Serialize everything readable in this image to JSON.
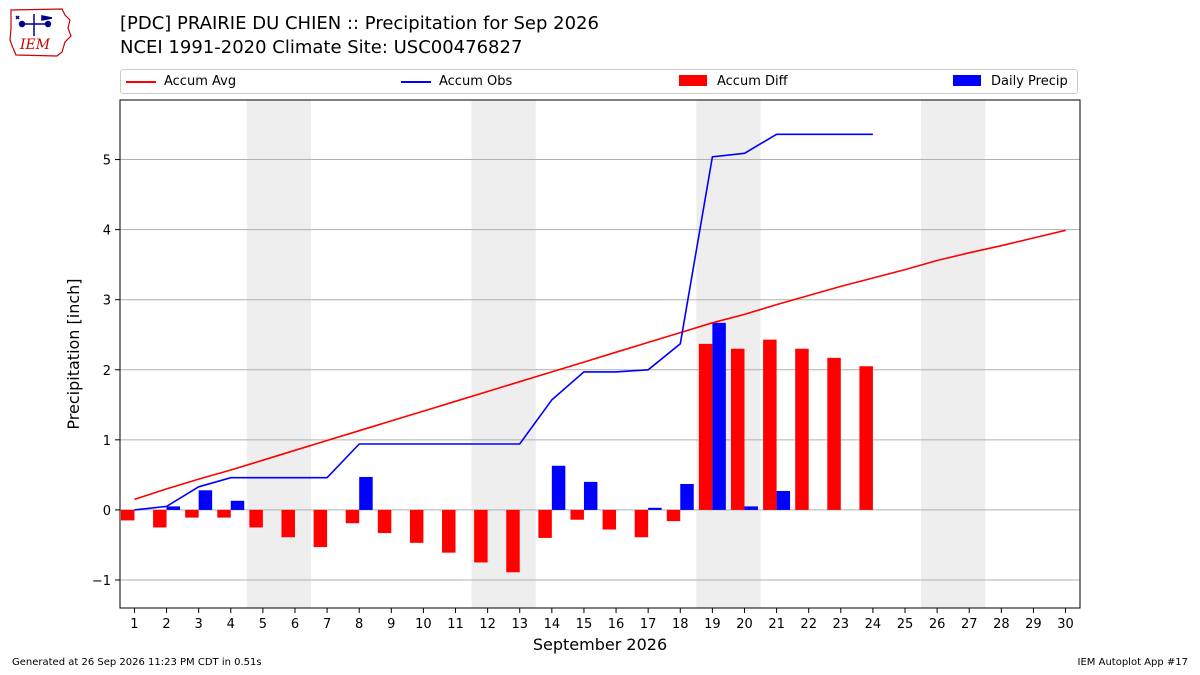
{
  "header": {
    "title_line1": "[PDC] PRAIRIE DU CHIEN :: Precipitation for Sep 2026",
    "title_line2": "NCEI 1991-2020 Climate Site: USC00476827",
    "logo_text": "IEM"
  },
  "footer": {
    "left": "Generated at 26 Sep 2026 11:23 PM CDT in 0.51s",
    "right": "IEM Autoplot App #17"
  },
  "colors": {
    "accum_avg": "#ff0000",
    "accum_obs": "#0000ff",
    "accum_diff": "#ff0000",
    "daily_precip": "#0000ff",
    "weekend_shade": "#eeeeee",
    "grid": "#b0b0b0"
  },
  "chart_data": {
    "type": "bar",
    "xlabel": "September 2026",
    "ylabel": "Precipitation [inch]",
    "ylim": [
      -1.4,
      5.85
    ],
    "yticks": [
      -1,
      0,
      1,
      2,
      3,
      4,
      5
    ],
    "ytick_labels": [
      "−1",
      "0",
      "1",
      "2",
      "3",
      "4",
      "5"
    ],
    "grid": "horizontal",
    "legend_position": "top",
    "weekend_shading": [
      [
        5,
        6
      ],
      [
        12,
        13
      ],
      [
        19,
        20
      ],
      [
        26,
        27
      ]
    ],
    "x": [
      1,
      2,
      3,
      4,
      5,
      6,
      7,
      8,
      9,
      10,
      11,
      12,
      13,
      14,
      15,
      16,
      17,
      18,
      19,
      20,
      21,
      22,
      23,
      24,
      25,
      26,
      27,
      28,
      29,
      30
    ],
    "x_tick_labels": [
      "1",
      "2",
      "3",
      "4",
      "5",
      "6",
      "7",
      "8",
      "9",
      "10",
      "11",
      "12",
      "13",
      "14",
      "15",
      "16",
      "17",
      "18",
      "19",
      "20",
      "21",
      "22",
      "23",
      "24",
      "25",
      "26",
      "27",
      "28",
      "29",
      "30"
    ],
    "series": [
      {
        "name": "Accum Avg",
        "type": "line",
        "color": "#ff0000",
        "x": [
          1,
          2,
          3,
          4,
          5,
          6,
          7,
          8,
          9,
          10,
          11,
          12,
          13,
          14,
          15,
          16,
          17,
          18,
          19,
          20,
          21,
          22,
          23,
          24,
          25,
          26,
          27,
          28,
          29,
          30
        ],
        "values": [
          0.15,
          0.3,
          0.44,
          0.57,
          0.71,
          0.85,
          0.99,
          1.13,
          1.27,
          1.41,
          1.55,
          1.69,
          1.83,
          1.97,
          2.11,
          2.25,
          2.39,
          2.53,
          2.67,
          2.79,
          2.93,
          3.06,
          3.19,
          3.31,
          3.43,
          3.56,
          3.67,
          3.77,
          3.88,
          3.99
        ]
      },
      {
        "name": "Accum Obs",
        "type": "line",
        "color": "#0000ff",
        "x": [
          1,
          2,
          3,
          4,
          5,
          6,
          7,
          8,
          9,
          10,
          11,
          12,
          13,
          14,
          15,
          16,
          17,
          18,
          19,
          20,
          21,
          22,
          23,
          24
        ],
        "values": [
          0.0,
          0.05,
          0.33,
          0.46,
          0.46,
          0.46,
          0.46,
          0.94,
          0.94,
          0.94,
          0.94,
          0.94,
          0.94,
          1.57,
          1.97,
          1.97,
          2.0,
          2.37,
          5.04,
          5.09,
          5.36,
          5.36,
          5.36,
          5.36
        ]
      },
      {
        "name": "Accum Diff",
        "type": "bar",
        "color": "#ff0000",
        "x": [
          1,
          2,
          3,
          4,
          5,
          6,
          7,
          8,
          9,
          10,
          11,
          12,
          13,
          14,
          15,
          16,
          17,
          18,
          19,
          20,
          21,
          22,
          23,
          24
        ],
        "values": [
          -0.15,
          -0.25,
          -0.11,
          -0.11,
          -0.25,
          -0.39,
          -0.53,
          -0.19,
          -0.33,
          -0.47,
          -0.61,
          -0.75,
          -0.89,
          -0.4,
          -0.14,
          -0.28,
          -0.39,
          -0.16,
          2.37,
          2.3,
          2.43,
          2.3,
          2.17,
          2.05
        ]
      },
      {
        "name": "Daily Precip",
        "type": "bar",
        "color": "#0000ff",
        "x": [
          1,
          2,
          3,
          4,
          5,
          6,
          7,
          8,
          9,
          10,
          11,
          12,
          13,
          14,
          15,
          16,
          17,
          18,
          19,
          20,
          21,
          22,
          23,
          24
        ],
        "values": [
          0.0,
          0.05,
          0.28,
          0.13,
          0.0,
          0.0,
          0.0,
          0.47,
          0.0,
          0.0,
          0.0,
          0.0,
          0.0,
          0.63,
          0.4,
          0.0,
          0.03,
          0.37,
          2.67,
          0.05,
          0.27,
          0.0,
          0.0,
          0.0
        ]
      }
    ]
  }
}
